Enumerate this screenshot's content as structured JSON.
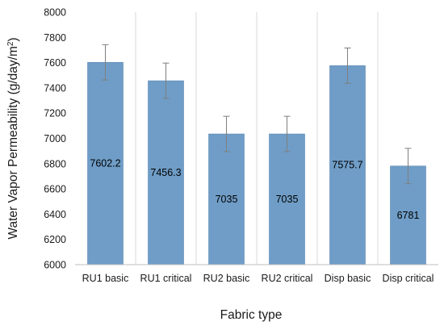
{
  "chart_data": {
    "type": "bar",
    "title": "",
    "xlabel": "Fabric type",
    "ylabel_main": "Water Vapor Permeability (g/day/m",
    "ylabel_sup": "2",
    "ylabel_close": ")",
    "ylim": [
      6000,
      8000
    ],
    "ytick_step": 200,
    "ytick_labels": [
      "6000",
      "6200",
      "6400",
      "6600",
      "6800",
      "7000",
      "7200",
      "7400",
      "7600",
      "7800",
      "8000"
    ],
    "categories": [
      "RU1 basic",
      "RU1 critical",
      "RU2 basic",
      "RU2 critical",
      "Disp basic",
      "Disp critical"
    ],
    "values": [
      7602.2,
      7456.3,
      7035,
      7035,
      7575.7,
      6781
    ],
    "value_labels": [
      "7602.2",
      "7456.3",
      "7035",
      "7035",
      "7575.7",
      "6781"
    ],
    "error": [
      140,
      140,
      140,
      140,
      140,
      140
    ],
    "grid": false,
    "legend": "none",
    "colors": {
      "bar": "#6f9dc7",
      "bar_edge": "#5b87b3",
      "error_bar": "#7f7f7f",
      "separator": "#d9d9d9",
      "axis": "#bfbfbf"
    }
  }
}
